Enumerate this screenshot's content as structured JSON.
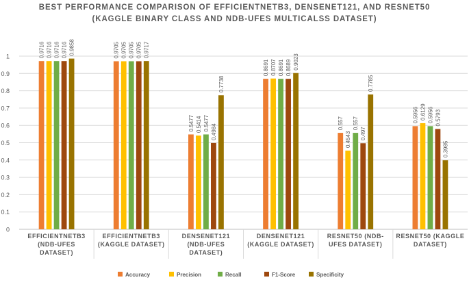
{
  "chart_data": {
    "type": "bar",
    "title_line1": "BEST PERFORMANCE COMPARISON OF EFFICIENTNETB3, DENSENET121, AND RESNET50",
    "title_line2": "(KAGGLE BINARY CLASS AND NDB-UFES MULTICALSS DATASET)",
    "xlabel": "",
    "ylabel": "",
    "ylim": [
      0,
      1
    ],
    "yticks": [
      "0",
      "0.1",
      "0.2",
      "0.3",
      "0.4",
      "0.5",
      "0.6",
      "0.7",
      "0.8",
      "0.9",
      "1"
    ],
    "grid": true,
    "legend_position": "bottom",
    "categories": [
      [
        "EFFICIENTNETB3",
        "(NDB-UFES",
        "DATASET)"
      ],
      [
        "EFFICIENTNETB3",
        "(KAGGLE DATASET)"
      ],
      [
        "DENSENET121",
        "(NDB-UFES",
        "DATASET)"
      ],
      [
        "DENSENET121",
        "(KAGGLE DATASET)"
      ],
      [
        "RESNET50 (NDB-",
        "UFES DATASET)"
      ],
      [
        "RESNET50 (KAGGLE",
        "DATASET)"
      ]
    ],
    "series": [
      {
        "name": "Accuracy",
        "color": "#ED7D31",
        "values": [
          0.9716,
          0.9705,
          0.5477,
          0.8691,
          0.557,
          0.5956
        ],
        "labels": [
          "0.9716",
          "0.9705",
          "0.5477",
          "0.8691",
          "0.557",
          "0.5956"
        ]
      },
      {
        "name": "Precision",
        "color": "#FFC000",
        "values": [
          0.9716,
          0.9705,
          0.5414,
          0.8707,
          0.4543,
          0.6129
        ],
        "labels": [
          "0.9716",
          "0.9705",
          "0.5414",
          "0.8707",
          "0.4543",
          "0.6129"
        ]
      },
      {
        "name": "Recall",
        "color": "#70AD47",
        "values": [
          0.9716,
          0.9705,
          0.5477,
          0.8691,
          0.557,
          0.5956
        ],
        "labels": [
          "0.9716",
          "0.9705",
          "0.5477",
          "0.8691",
          "0.557",
          "0.5956"
        ]
      },
      {
        "name": "F1-Score",
        "color": "#9E480E",
        "values": [
          0.9716,
          0.9705,
          0.4984,
          0.8689,
          0.497,
          0.5793
        ],
        "labels": [
          "0.9716",
          "0.9705",
          "0.4984",
          "0.8689",
          "0.497",
          "0.5793"
        ]
      },
      {
        "name": "Specificity",
        "color": "#997300",
        "values": [
          0.9858,
          0.9717,
          0.7738,
          0.9023,
          0.7785,
          0.3985
        ],
        "labels": [
          "0.9858",
          "0.9717",
          "0.7738",
          "0.9023",
          "0.7785",
          "0.3985"
        ]
      }
    ]
  }
}
